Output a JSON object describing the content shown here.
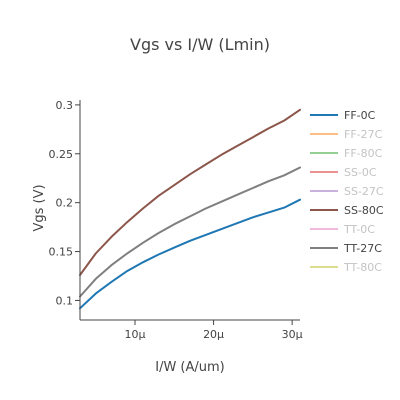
{
  "chart_data": {
    "type": "line",
    "title": "Vgs vs I/W (Lmin)",
    "xlabel": "I/W (A/um)",
    "ylabel": "Vgs (V)",
    "xlim": [
      3,
      31
    ],
    "ylim": [
      0.08,
      0.305
    ],
    "x_ticks": [
      10,
      20,
      30
    ],
    "x_tick_labels": [
      "10μ",
      "20μ",
      "30μ"
    ],
    "y_ticks": [
      0.1,
      0.15,
      0.2,
      0.25,
      0.3
    ],
    "y_tick_labels": [
      "0.1",
      "0.15",
      "0.2",
      "0.25",
      "0.3"
    ],
    "grid": false,
    "legend_position": "right",
    "series": [
      {
        "name": "FF-0C",
        "color": "#1f77b4",
        "visible": true,
        "x": [
          3,
          5,
          7,
          9,
          11,
          13,
          15,
          17,
          19,
          21,
          23,
          25,
          27,
          29,
          31
        ],
        "y": [
          0.092,
          0.107,
          0.119,
          0.13,
          0.139,
          0.147,
          0.154,
          0.161,
          0.167,
          0.173,
          0.179,
          0.185,
          0.19,
          0.195,
          0.203
        ]
      },
      {
        "name": "FF-27C",
        "color": "#ff7f0e",
        "visible": false,
        "x": [],
        "y": []
      },
      {
        "name": "FF-80C",
        "color": "#2ca02c",
        "visible": false,
        "x": [],
        "y": []
      },
      {
        "name": "SS-0C",
        "color": "#d62728",
        "visible": false,
        "x": [],
        "y": []
      },
      {
        "name": "SS-27C",
        "color": "#9467bd",
        "visible": false,
        "x": [],
        "y": []
      },
      {
        "name": "SS-80C",
        "color": "#8c564b",
        "visible": true,
        "x": [
          3,
          5,
          7,
          9,
          11,
          13,
          15,
          17,
          19,
          21,
          23,
          25,
          27,
          29,
          31
        ],
        "y": [
          0.126,
          0.148,
          0.165,
          0.18,
          0.194,
          0.207,
          0.218,
          0.229,
          0.239,
          0.249,
          0.258,
          0.267,
          0.276,
          0.284,
          0.295
        ]
      },
      {
        "name": "TT-0C",
        "color": "#e377c2",
        "visible": false,
        "x": [],
        "y": []
      },
      {
        "name": "TT-27C",
        "color": "#7f7f7f",
        "visible": true,
        "x": [
          3,
          5,
          7,
          9,
          11,
          13,
          15,
          17,
          19,
          21,
          23,
          25,
          27,
          29,
          31
        ],
        "y": [
          0.104,
          0.122,
          0.136,
          0.148,
          0.159,
          0.169,
          0.178,
          0.186,
          0.194,
          0.201,
          0.208,
          0.215,
          0.222,
          0.228,
          0.236
        ]
      },
      {
        "name": "TT-80C",
        "color": "#bcbd22",
        "visible": false,
        "x": [],
        "y": []
      }
    ]
  }
}
